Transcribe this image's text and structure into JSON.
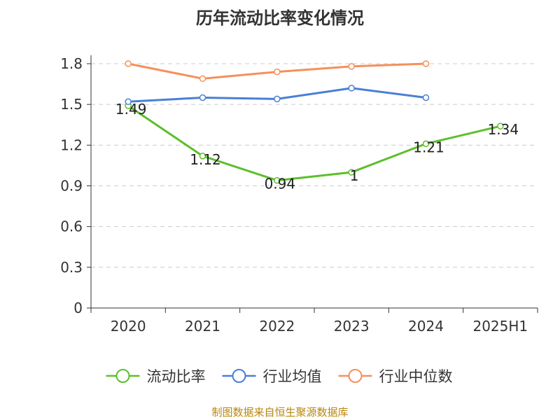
{
  "chart_data": {
    "type": "line",
    "title": "历年流动比率变化情况",
    "categories": [
      "2020",
      "2021",
      "2022",
      "2023",
      "2024",
      "2025H1"
    ],
    "y_ticks": [
      "0",
      "0.3",
      "0.6",
      "0.9",
      "1.2",
      "1.5",
      "1.8"
    ],
    "ylim": [
      0,
      1.8
    ],
    "grid": true,
    "legend_position": "bottom",
    "series": [
      {
        "name": "流动比率",
        "color": "#5cbf2a",
        "values": [
          1.49,
          1.12,
          0.94,
          1.0,
          1.21,
          1.34
        ],
        "labels": [
          "1.49",
          "1.12",
          "0.94",
          "1",
          "1.21",
          "1.34"
        ]
      },
      {
        "name": "行业均值",
        "color": "#4a7fd6",
        "values": [
          1.52,
          1.55,
          1.54,
          1.62,
          1.55,
          null
        ]
      },
      {
        "name": "行业中位数",
        "color": "#f5905a",
        "values": [
          1.8,
          1.69,
          1.74,
          1.78,
          1.8,
          null
        ]
      }
    ]
  },
  "source_note": "制图数据来自恒生聚源数据库"
}
